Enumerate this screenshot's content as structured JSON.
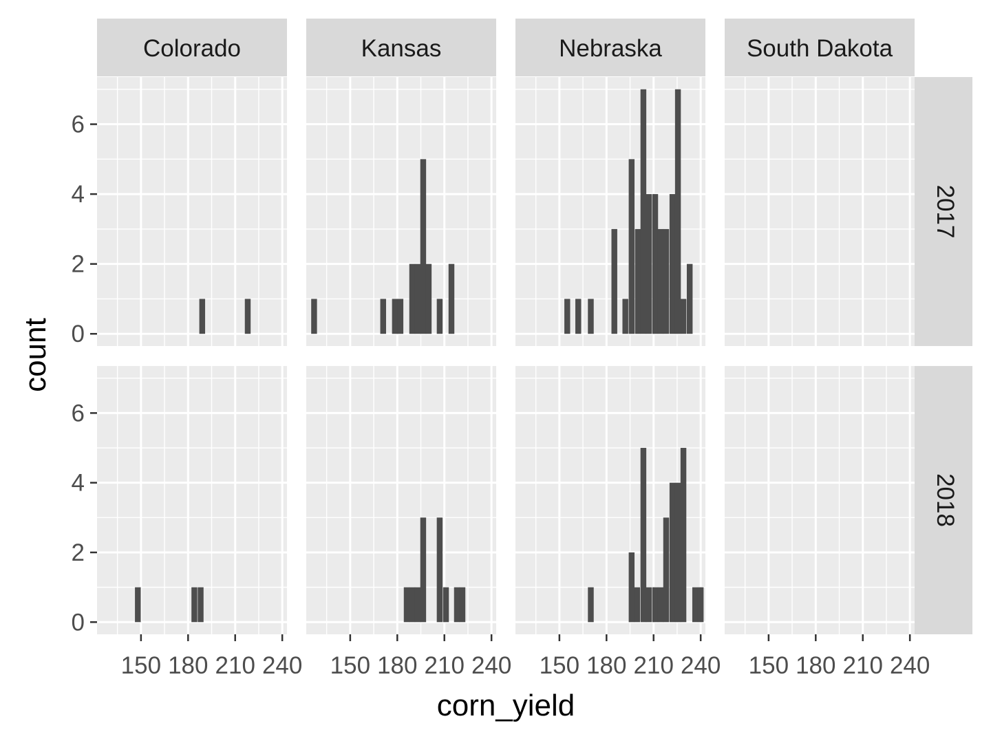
{
  "chart_data": {
    "type": "bar",
    "chart_kind": "histogram",
    "facets": {
      "columns": [
        "Colorado",
        "Kansas",
        "Nebraska",
        "South Dakota"
      ],
      "rows": [
        "2017",
        "2018"
      ]
    },
    "xlabel": "corn_yield",
    "ylabel": "count",
    "x_ticks": [
      150,
      180,
      210,
      240
    ],
    "x_tick_labels": [
      "150",
      "180",
      "210",
      "240"
    ],
    "y_ticks": [
      0,
      2,
      4,
      6
    ],
    "y_tick_labels": [
      "0",
      "2",
      "4",
      "6"
    ],
    "xlim": [
      122,
      243
    ],
    "ylim": [
      -0.35,
      7.35
    ],
    "bin_width": 3.7,
    "panels": [
      {
        "column": "Colorado",
        "row": "2017",
        "bins": [
          {
            "x": 189,
            "count": 1
          },
          {
            "x": 218,
            "count": 1
          }
        ]
      },
      {
        "column": "Kansas",
        "row": "2017",
        "bins": [
          {
            "x": 127,
            "count": 1
          },
          {
            "x": 171,
            "count": 1
          },
          {
            "x": 178.5,
            "count": 1
          },
          {
            "x": 182,
            "count": 1
          },
          {
            "x": 189.5,
            "count": 2
          },
          {
            "x": 193,
            "count": 2
          },
          {
            "x": 196.5,
            "count": 5
          },
          {
            "x": 200,
            "count": 2
          },
          {
            "x": 207,
            "count": 1
          },
          {
            "x": 214.5,
            "count": 2
          }
        ]
      },
      {
        "column": "Nebraska",
        "row": "2017",
        "bins": [
          {
            "x": 155,
            "count": 1
          },
          {
            "x": 162,
            "count": 1
          },
          {
            "x": 170,
            "count": 1
          },
          {
            "x": 185,
            "count": 3
          },
          {
            "x": 192,
            "count": 1
          },
          {
            "x": 196,
            "count": 5
          },
          {
            "x": 200,
            "count": 3
          },
          {
            "x": 203.5,
            "count": 7
          },
          {
            "x": 207,
            "count": 4
          },
          {
            "x": 211,
            "count": 4
          },
          {
            "x": 214.5,
            "count": 3
          },
          {
            "x": 218,
            "count": 3
          },
          {
            "x": 222,
            "count": 4
          },
          {
            "x": 225.5,
            "count": 7
          },
          {
            "x": 229,
            "count": 1
          },
          {
            "x": 233,
            "count": 2
          }
        ]
      },
      {
        "column": "South Dakota",
        "row": "2017",
        "bins": []
      },
      {
        "column": "Colorado",
        "row": "2018",
        "bins": [
          {
            "x": 148,
            "count": 1
          },
          {
            "x": 184,
            "count": 1
          },
          {
            "x": 188,
            "count": 1
          }
        ]
      },
      {
        "column": "Kansas",
        "row": "2018",
        "bins": [
          {
            "x": 186,
            "count": 1
          },
          {
            "x": 189.5,
            "count": 1
          },
          {
            "x": 193,
            "count": 1
          },
          {
            "x": 196.5,
            "count": 3
          },
          {
            "x": 207,
            "count": 3
          },
          {
            "x": 211,
            "count": 1
          },
          {
            "x": 218,
            "count": 1
          },
          {
            "x": 221.5,
            "count": 1
          }
        ]
      },
      {
        "column": "Nebraska",
        "row": "2018",
        "bins": [
          {
            "x": 170,
            "count": 1
          },
          {
            "x": 196,
            "count": 2
          },
          {
            "x": 199.5,
            "count": 1
          },
          {
            "x": 203.5,
            "count": 5
          },
          {
            "x": 207,
            "count": 1
          },
          {
            "x": 211,
            "count": 1
          },
          {
            "x": 214.5,
            "count": 1
          },
          {
            "x": 218,
            "count": 3
          },
          {
            "x": 222,
            "count": 4
          },
          {
            "x": 225.5,
            "count": 4
          },
          {
            "x": 229,
            "count": 5
          },
          {
            "x": 236.5,
            "count": 1
          },
          {
            "x": 240,
            "count": 1
          }
        ]
      },
      {
        "column": "South Dakota",
        "row": "2018",
        "bins": []
      }
    ]
  }
}
